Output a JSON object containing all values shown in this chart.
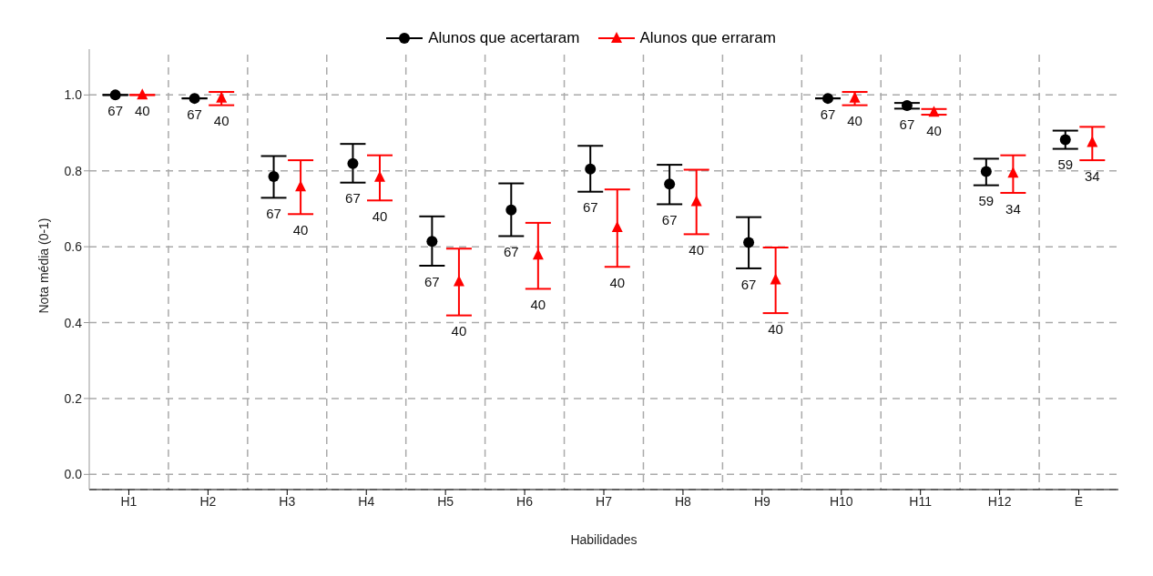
{
  "chart_data": {
    "type": "scatter",
    "xlabel": "Habilidades",
    "ylabel": "Nota média (0-1)",
    "categories": [
      "H1",
      "H2",
      "H3",
      "H4",
      "H5",
      "H6",
      "H7",
      "H8",
      "H9",
      "H10",
      "H11",
      "H12",
      "E"
    ],
    "ylim": [
      -0.04,
      1.14
    ],
    "yticks": [
      {
        "value": 0,
        "label": "0.0"
      },
      0.2,
      0.4,
      0.6,
      0.8,
      {
        "value": 1,
        "label": "1.0"
      }
    ],
    "grid": true,
    "legend": "top",
    "line_style": "solid",
    "series": [
      {
        "name": "Alunos que acertaram",
        "color": "#000000",
        "marker": "circle",
        "values": [
          1.0,
          0.991,
          0.785,
          0.819,
          0.614,
          0.697,
          0.805,
          0.765,
          0.611,
          0.991,
          0.972,
          0.798,
          0.882
        ],
        "errors": [
          null,
          null,
          [
            0.729,
            0.839
          ],
          [
            0.769,
            0.871
          ],
          [
            0.55,
            0.68
          ],
          [
            0.628,
            0.767
          ],
          [
            0.745,
            0.866
          ],
          [
            0.712,
            0.816
          ],
          [
            0.543,
            0.678
          ],
          null,
          [
            0.964,
            0.979
          ],
          [
            0.762,
            0.832
          ],
          [
            0.858,
            0.906
          ]
        ]
      },
      {
        "name": "Alunos que erraram",
        "color": "#ff0000",
        "marker": "triangle",
        "values": [
          1.0,
          0.992,
          0.758,
          0.783,
          0.508,
          0.578,
          0.651,
          0.719,
          0.513,
          0.992,
          0.955,
          0.794,
          0.875
        ],
        "errors": [
          null,
          [
            0.973,
            1.008
          ],
          [
            0.686,
            0.828
          ],
          [
            0.722,
            0.841
          ],
          [
            0.419,
            0.595
          ],
          [
            0.489,
            0.663
          ],
          [
            0.547,
            0.751
          ],
          [
            0.633,
            0.803
          ],
          [
            0.425,
            0.598
          ],
          [
            0.973,
            1.008
          ],
          [
            0.948,
            0.963
          ],
          [
            0.742,
            0.841
          ],
          [
            0.828,
            0.916
          ]
        ]
      }
    ],
    "annotations": [
      {
        "text": "67",
        "x": "H1",
        "y": 1.0
      },
      {
        "text": "40",
        "x": "H1",
        "y": 1.0
      },
      {
        "text": "67",
        "x": "H2",
        "y": 0.991
      },
      {
        "text": "40",
        "x": "H2",
        "y": 0.973
      },
      {
        "text": "67",
        "x": "H3",
        "y": 0.729
      },
      {
        "text": "40",
        "x": "H3",
        "y": 0.686
      },
      {
        "text": "67",
        "x": "H4",
        "y": 0.769
      },
      {
        "text": "40",
        "x": "H4",
        "y": 0.722
      },
      {
        "text": "67",
        "x": "H5",
        "y": 0.55
      },
      {
        "text": "40",
        "x": "H5",
        "y": 0.419
      },
      {
        "text": "67",
        "x": "H6",
        "y": 0.628
      },
      {
        "text": "40",
        "x": "H6",
        "y": 0.489
      },
      {
        "text": "67",
        "x": "H7",
        "y": 0.745
      },
      {
        "text": "40",
        "x": "H7",
        "y": 0.547
      },
      {
        "text": "67",
        "x": "H8",
        "y": 0.712
      },
      {
        "text": "40",
        "x": "H8",
        "y": 0.633
      },
      {
        "text": "67",
        "x": "H9",
        "y": 0.543
      },
      {
        "text": "40",
        "x": "H9",
        "y": 0.425
      },
      {
        "text": "67",
        "x": "H10",
        "y": 0.991
      },
      {
        "text": "40",
        "x": "H10",
        "y": 0.973
      },
      {
        "text": "67",
        "x": "H11",
        "y": 0.964
      },
      {
        "text": "40",
        "x": "H11",
        "y": 0.948
      },
      {
        "text": "59",
        "x": "H12",
        "y": 0.762
      },
      {
        "text": "34",
        "x": "H12",
        "y": 0.742
      },
      {
        "text": "59",
        "x": "E",
        "y": 0.858
      },
      {
        "text": "34",
        "x": "E",
        "y": 0.828
      }
    ]
  }
}
